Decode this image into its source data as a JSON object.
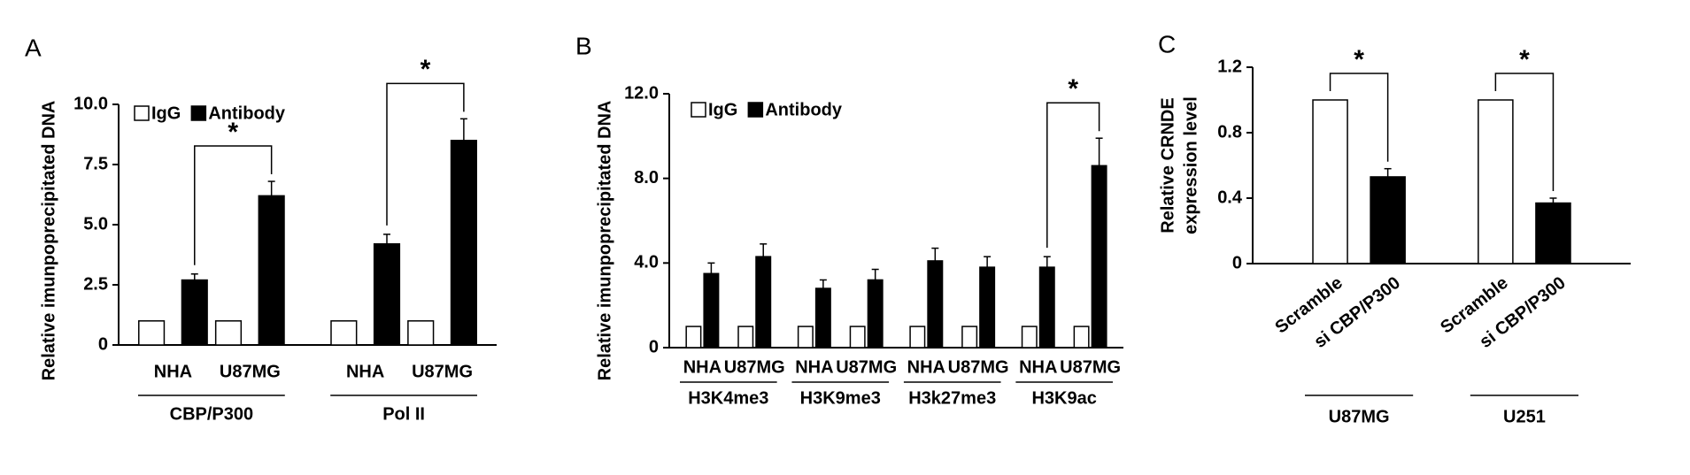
{
  "chart_data": [
    {
      "type": "bar",
      "panel_label": "A",
      "ylabel": "Relative imunpoprecipitated DNA",
      "categories": [
        "NHA",
        "U87MG",
        "NHA",
        "U87MG"
      ],
      "groups": [
        {
          "label": "CBP/P300",
          "significance": "*"
        },
        {
          "label": "Pol II",
          "significance": "*"
        }
      ],
      "series": [
        {
          "name": "IgG",
          "color": "#ffffff",
          "values": [
            1,
            1,
            1,
            1
          ]
        },
        {
          "name": "Antibody",
          "color": "#000000",
          "values": [
            2.7,
            6.2,
            4.2,
            8.5
          ],
          "errors": [
            0.25,
            0.6,
            0.4,
            0.9
          ]
        }
      ],
      "ylim": [
        0,
        10
      ],
      "yticks": [
        0,
        2.5,
        {
          "value": 5,
          "label": "5.0"
        },
        7.5,
        {
          "value": 10,
          "label": "10.0"
        }
      ],
      "legend": "upper left"
    },
    {
      "type": "bar",
      "panel_label": "B",
      "ylabel": "Relative imunpoprecipitated DNA",
      "categories": [
        "NHA",
        "U87MG",
        "NHA",
        "U87MG",
        "NHA",
        "U87MG",
        "NHA",
        "U87MG"
      ],
      "groups": [
        {
          "label": "H3K4me3"
        },
        {
          "label": "H3K9me3"
        },
        {
          "label": "H3k27me3"
        },
        {
          "label": "H3K9ac",
          "significance": "*"
        }
      ],
      "series": [
        {
          "name": "IgG",
          "color": "#ffffff",
          "values": [
            1,
            1,
            1,
            1,
            1,
            1,
            1,
            1
          ]
        },
        {
          "name": "Antibody",
          "color": "#000000",
          "values": [
            3.5,
            4.3,
            2.8,
            3.2,
            4.1,
            3.8,
            3.8,
            8.6
          ],
          "errors": [
            0.5,
            0.6,
            0.4,
            0.5,
            0.6,
            0.5,
            0.5,
            1.3
          ]
        }
      ],
      "ylim": [
        0,
        12
      ],
      "yticks": [
        0,
        {
          "value": 4,
          "label": "4.0"
        },
        {
          "value": 8,
          "label": "8.0"
        },
        {
          "value": 12,
          "label": "12.0"
        }
      ],
      "legend": "upper left"
    },
    {
      "type": "bar",
      "panel_label": "C",
      "ylabel": [
        "Relative CRNDE",
        "expression level"
      ],
      "categories": [
        "Scramble",
        "si CBP/P300",
        "Scramble",
        "si CBP/P300"
      ],
      "groups": [
        {
          "label": "U87MG",
          "significance": "*"
        },
        {
          "label": "U251",
          "significance": "*"
        }
      ],
      "values": [
        1,
        0.53,
        1,
        0.37
      ],
      "errors": [
        null,
        0.05,
        null,
        0.03
      ],
      "colors": [
        "#ffffff",
        "#000000",
        "#ffffff",
        "#000000"
      ],
      "ylim": [
        0,
        1.2
      ],
      "yticks": [
        0,
        0.4,
        0.8,
        1.2
      ]
    }
  ]
}
